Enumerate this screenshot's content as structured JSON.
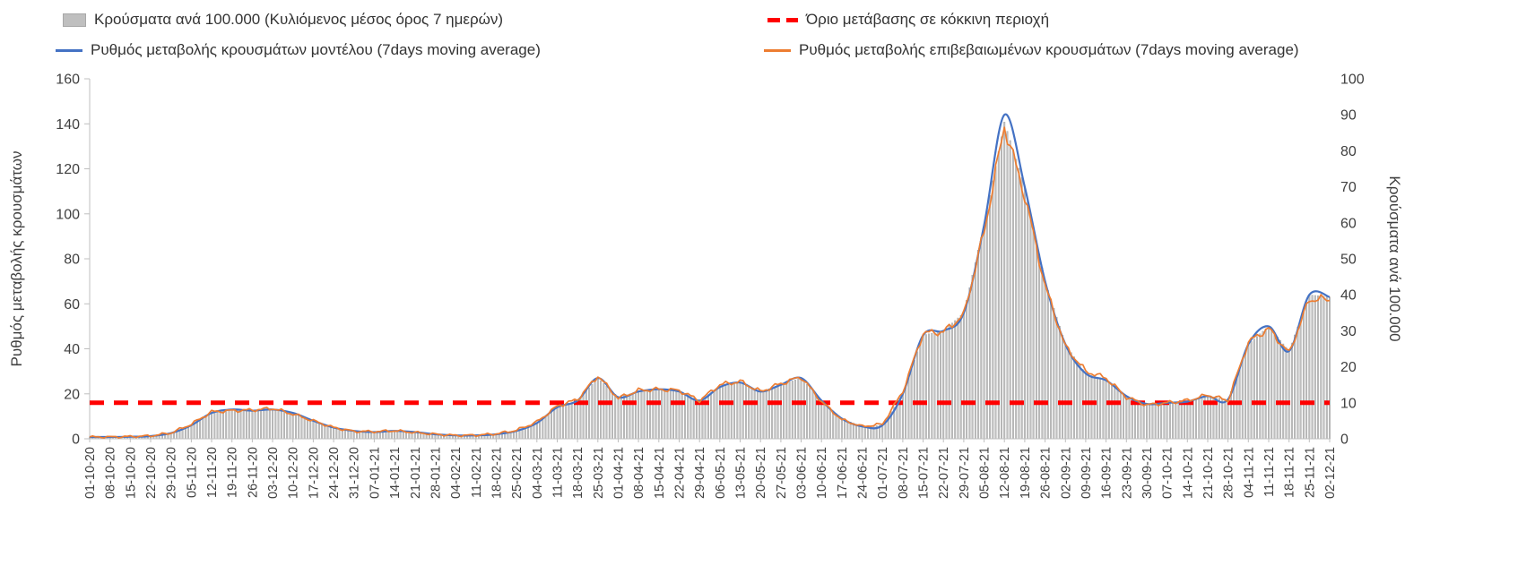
{
  "chart_data": {
    "type": "combo-bar-line",
    "title": "",
    "legend_position": "top",
    "grid": false,
    "x_labels": [
      "01-10-20",
      "08-10-20",
      "15-10-20",
      "22-10-20",
      "29-10-20",
      "05-11-20",
      "12-11-20",
      "19-11-20",
      "26-11-20",
      "03-12-20",
      "10-12-20",
      "17-12-20",
      "24-12-20",
      "31-12-20",
      "07-01-21",
      "14-01-21",
      "21-01-21",
      "28-01-21",
      "04-02-21",
      "11-02-21",
      "18-02-21",
      "25-02-21",
      "04-03-21",
      "11-03-21",
      "18-03-21",
      "25-03-21",
      "01-04-21",
      "08-04-21",
      "15-04-21",
      "22-04-21",
      "29-04-21",
      "06-05-21",
      "13-05-21",
      "20-05-21",
      "27-05-21",
      "03-06-21",
      "10-06-21",
      "17-06-21",
      "24-06-21",
      "01-07-21",
      "08-07-21",
      "15-07-21",
      "22-07-21",
      "29-07-21",
      "05-08-21",
      "12-08-21",
      "19-08-21",
      "26-08-21",
      "02-09-21",
      "09-09-21",
      "16-09-21",
      "23-09-21",
      "30-09-21",
      "07-10-21",
      "14-10-21",
      "21-10-21",
      "28-10-21",
      "04-11-21",
      "11-11-21",
      "18-11-21",
      "25-11-21",
      "02-12-21"
    ],
    "series": [
      {
        "name": "Κρούσματα ανά 100.000 (Κυλιόμενος μέσος όρος 7 ημερών)",
        "type": "bar",
        "axis": "right",
        "color": "#bfbfbf",
        "values": [
          0.5,
          0.5,
          0.6,
          0.8,
          1.6,
          3.8,
          7.2,
          8.1,
          7.8,
          8.1,
          7.2,
          5,
          3.1,
          2.2,
          1.9,
          2.2,
          1.9,
          1.3,
          0.9,
          0.9,
          1.3,
          2.2,
          4.4,
          8.8,
          10.6,
          16.9,
          11.6,
          13.1,
          13.8,
          13.1,
          10.6,
          14.4,
          15.6,
          13.1,
          15,
          16.9,
          10.6,
          5.6,
          3.4,
          3.8,
          12.5,
          28.8,
          30,
          35,
          59.4,
          88,
          70,
          43.8,
          26.3,
          18.1,
          16.3,
          11.9,
          9.7,
          10,
          10.3,
          11.9,
          10.9,
          26.3,
          31.3,
          24.4,
          40,
          39.4
        ]
      },
      {
        "name": "Ρυθμός μεταβολής κρουσμάτων μοντέλου (7days moving average)",
        "type": "line",
        "axis": "left",
        "color": "#4472c4",
        "values": [
          0.8,
          0.8,
          0.9,
          1.2,
          2.5,
          6,
          11.5,
          13,
          12.5,
          13,
          11.5,
          8,
          5,
          3.5,
          3,
          3.5,
          3,
          2,
          1.5,
          1.5,
          2,
          3.5,
          7,
          14,
          17,
          27,
          18.5,
          21,
          22,
          21,
          17,
          23,
          25,
          21,
          24,
          27,
          17,
          9,
          5.5,
          6,
          20,
          46,
          48,
          56,
          95,
          144,
          112,
          70,
          42,
          29,
          26,
          19,
          15.5,
          16,
          16.5,
          19,
          17.5,
          42,
          50,
          39,
          64,
          63
        ]
      },
      {
        "name": "Ρυθμός μεταβολής επιβεβαιωμένων κρουσμάτων (7days moving average)",
        "type": "line",
        "axis": "left",
        "color": "#ed7d31",
        "values": [
          0.8,
          0.8,
          1,
          1.3,
          2.6,
          6.5,
          12,
          12.5,
          12.8,
          13.5,
          11,
          8,
          5,
          3.3,
          3.2,
          3.6,
          2.8,
          2,
          1.5,
          1.6,
          2.2,
          3.8,
          7.5,
          14.5,
          17.5,
          28,
          18,
          21.5,
          22,
          21.5,
          17,
          24,
          25.5,
          21,
          24.5,
          27.5,
          16.5,
          8.5,
          5.5,
          6.5,
          21,
          47,
          47.5,
          55,
          92,
          139,
          108,
          68,
          41,
          30,
          27,
          18.5,
          15,
          16,
          17,
          19.5,
          17,
          43,
          49,
          38,
          62,
          62
        ]
      }
    ],
    "threshold": {
      "name": "Όριο μετάβασης σε κόκκινη περιοχή",
      "color": "#ff0000",
      "style": "dashed",
      "value_left_axis": 16,
      "value_right_axis": 10
    },
    "left_axis": {
      "label": "Ρυθμός μεταβολής κρουσμάτων",
      "min": 0,
      "max": 160,
      "ticks": [
        0,
        20,
        40,
        60,
        80,
        100,
        120,
        140,
        160
      ]
    },
    "right_axis": {
      "label": "Κρούσματα ανά 100.000",
      "min": 0,
      "max": 100,
      "ticks": [
        0,
        10,
        20,
        30,
        40,
        50,
        60,
        70,
        80,
        90,
        100
      ]
    }
  }
}
